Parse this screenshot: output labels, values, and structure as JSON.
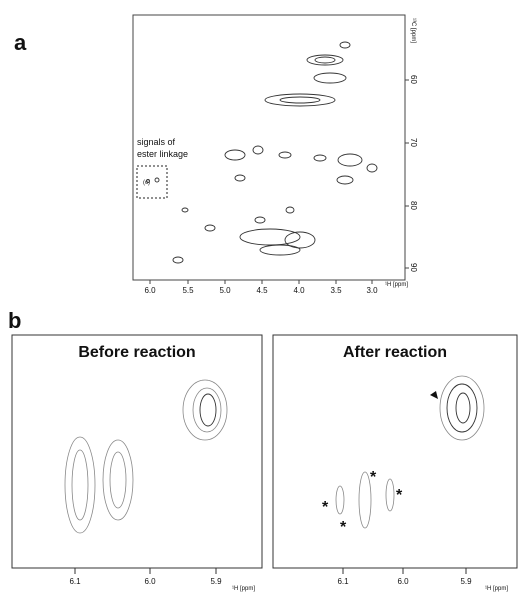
{
  "panel_a": {
    "label": "a",
    "annotation": [
      "signals of",
      "ester linkage"
    ],
    "box_label": "(c)",
    "x_axis_label": "¹H [ppm]",
    "y_axis_label": "¹³C [ppm]",
    "xticks": [
      "6.0",
      "5.5",
      "5.0",
      "4.5",
      "4.0",
      "3.5",
      "3.0"
    ],
    "yticks": [
      "60",
      "70",
      "80",
      "90"
    ]
  },
  "panel_b": {
    "label": "b",
    "left": {
      "title": "Before reaction",
      "xticks": [
        "6.1",
        "6.0",
        "5.9"
      ],
      "x_axis_label": "¹H [ppm]"
    },
    "right": {
      "title": "After reaction",
      "xticks": [
        "6.1",
        "6.0",
        "5.9"
      ],
      "x_axis_label": "¹H [ppm]",
      "markers": [
        "*",
        "*",
        "*",
        "*"
      ]
    }
  }
}
